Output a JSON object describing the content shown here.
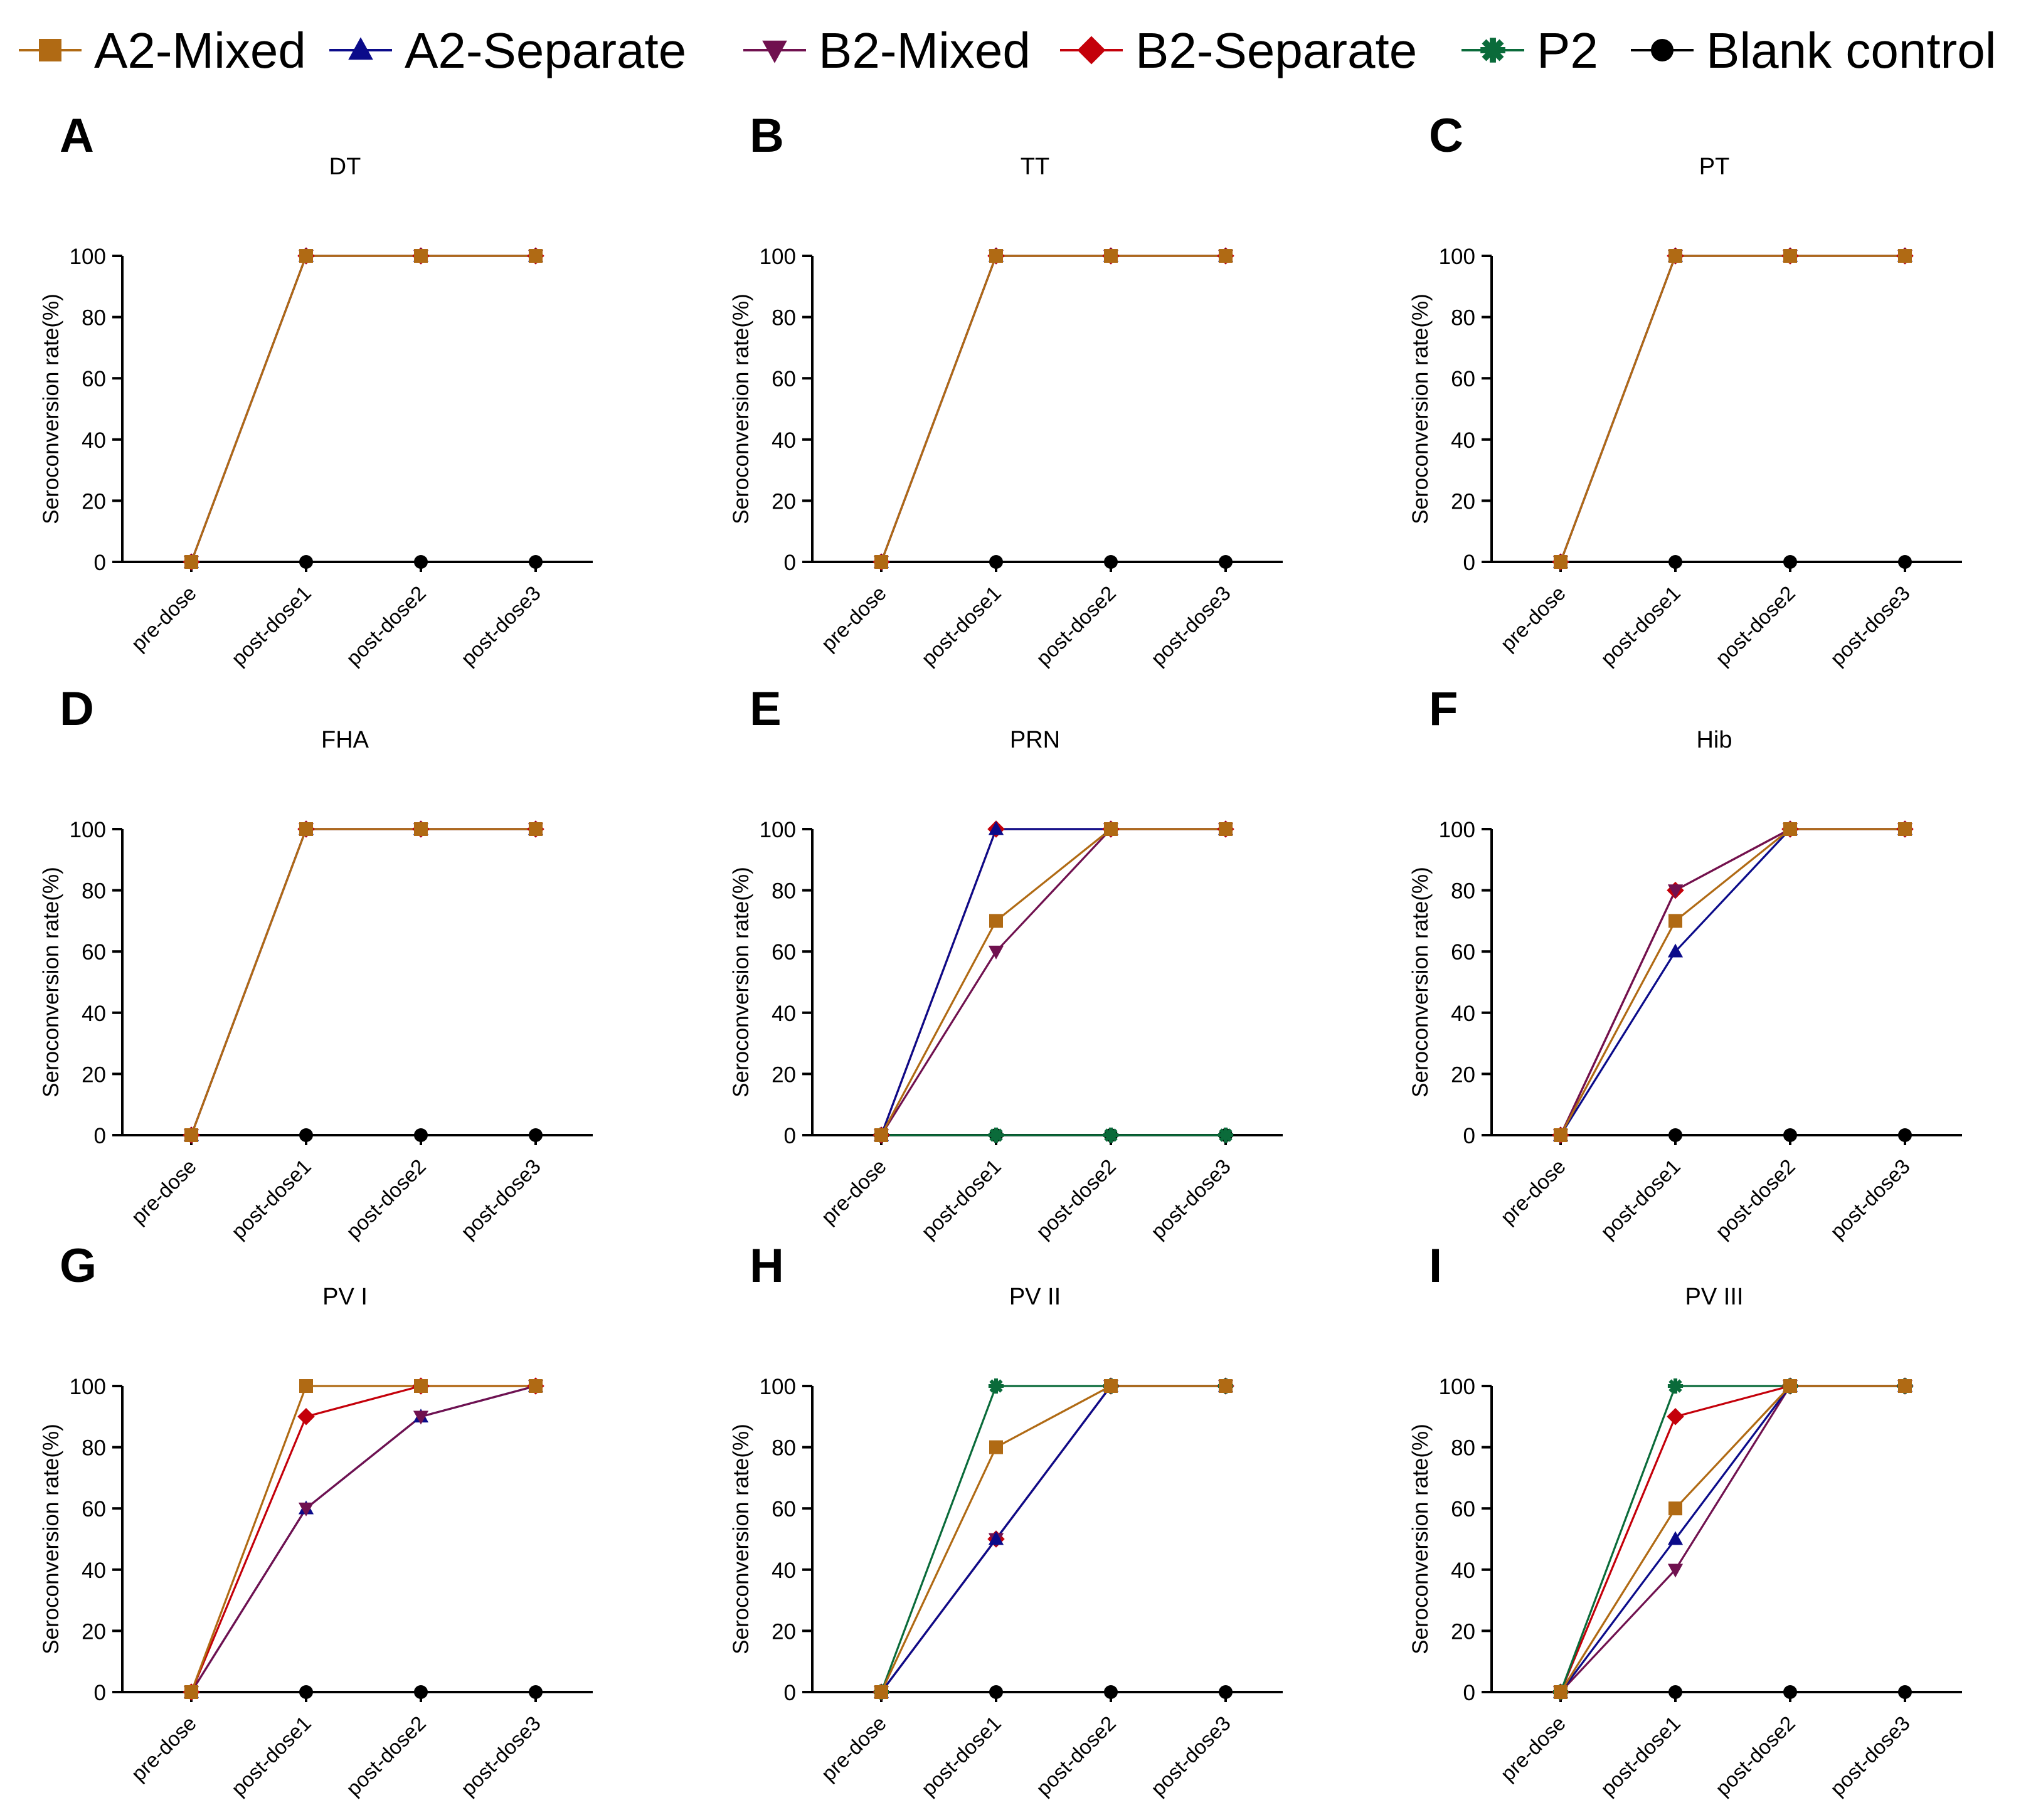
{
  "legend": {
    "entries": [
      {
        "name": "A2-Mixed",
        "color": "#B06A14",
        "marker": "square"
      },
      {
        "name": "A2-Separate",
        "color": "#0B0B8A",
        "marker": "triangle-up"
      },
      {
        "name": "B2-Mixed",
        "color": "#70114F",
        "marker": "triangle-down"
      },
      {
        "name": "B2-Separate",
        "color": "#C4000A",
        "marker": "diamond"
      },
      {
        "name": "P2",
        "color": "#0A6B3A",
        "marker": "asterisk"
      },
      {
        "name": "Blank control",
        "color": "#000000",
        "marker": "circle"
      }
    ]
  },
  "chart_data": [
    {
      "panel": "A",
      "title": "DT",
      "type": "line",
      "categories": [
        "pre-dose",
        "post-dose1",
        "post-dose2",
        "post-dose3"
      ],
      "ylabel": "Seroconversion rate(%)",
      "ylim": [
        0,
        100
      ],
      "yticks": [
        0,
        20,
        40,
        60,
        80,
        100
      ],
      "series": [
        {
          "name": "B2-Separate",
          "values": [
            0,
            100,
            100,
            100
          ]
        },
        {
          "name": "B2-Mixed",
          "values": [
            0,
            100,
            100,
            100
          ]
        },
        {
          "name": "A2-Separate",
          "values": [
            0,
            100,
            100,
            100
          ]
        },
        {
          "name": "A2-Mixed",
          "values": [
            0,
            100,
            100,
            100
          ]
        },
        {
          "name": "Blank control",
          "values": [
            null,
            0,
            0,
            0
          ]
        }
      ]
    },
    {
      "panel": "B",
      "title": "TT",
      "type": "line",
      "categories": [
        "pre-dose",
        "post-dose1",
        "post-dose2",
        "post-dose3"
      ],
      "ylabel": "Seroconversion rate(%)",
      "ylim": [
        0,
        100
      ],
      "yticks": [
        0,
        20,
        40,
        60,
        80,
        100
      ],
      "series": [
        {
          "name": "B2-Separate",
          "values": [
            0,
            100,
            100,
            100
          ]
        },
        {
          "name": "B2-Mixed",
          "values": [
            0,
            100,
            100,
            100
          ]
        },
        {
          "name": "A2-Separate",
          "values": [
            0,
            100,
            100,
            100
          ]
        },
        {
          "name": "A2-Mixed",
          "values": [
            0,
            100,
            100,
            100
          ]
        },
        {
          "name": "Blank control",
          "values": [
            null,
            0,
            0,
            0
          ]
        }
      ]
    },
    {
      "panel": "C",
      "title": "PT",
      "type": "line",
      "categories": [
        "pre-dose",
        "post-dose1",
        "post-dose2",
        "post-dose3"
      ],
      "ylabel": "Seroconversion rate(%)",
      "ylim": [
        0,
        100
      ],
      "yticks": [
        0,
        20,
        40,
        60,
        80,
        100
      ],
      "series": [
        {
          "name": "B2-Separate",
          "values": [
            0,
            100,
            100,
            100
          ]
        },
        {
          "name": "B2-Mixed",
          "values": [
            0,
            100,
            100,
            100
          ]
        },
        {
          "name": "A2-Separate",
          "values": [
            0,
            100,
            100,
            100
          ]
        },
        {
          "name": "A2-Mixed",
          "values": [
            0,
            100,
            100,
            100
          ]
        },
        {
          "name": "Blank control",
          "values": [
            null,
            0,
            0,
            0
          ]
        }
      ]
    },
    {
      "panel": "D",
      "title": "FHA",
      "type": "line",
      "categories": [
        "pre-dose",
        "post-dose1",
        "post-dose2",
        "post-dose3"
      ],
      "ylabel": "Seroconversion rate(%)",
      "ylim": [
        0,
        100
      ],
      "yticks": [
        0,
        20,
        40,
        60,
        80,
        100
      ],
      "series": [
        {
          "name": "B2-Separate",
          "values": [
            0,
            100,
            100,
            100
          ]
        },
        {
          "name": "B2-Mixed",
          "values": [
            0,
            100,
            100,
            100
          ]
        },
        {
          "name": "A2-Separate",
          "values": [
            0,
            100,
            100,
            100
          ]
        },
        {
          "name": "A2-Mixed",
          "values": [
            0,
            100,
            100,
            100
          ]
        },
        {
          "name": "Blank control",
          "values": [
            null,
            0,
            0,
            0
          ]
        }
      ]
    },
    {
      "panel": "E",
      "title": "PRN",
      "type": "line",
      "categories": [
        "pre-dose",
        "post-dose1",
        "post-dose2",
        "post-dose3"
      ],
      "ylabel": "Seroconversion rate(%)",
      "ylim": [
        0,
        100
      ],
      "yticks": [
        0,
        20,
        40,
        60,
        80,
        100
      ],
      "series": [
        {
          "name": "Blank control",
          "values": [
            0,
            0,
            0,
            0
          ]
        },
        {
          "name": "P2",
          "values": [
            0,
            0,
            0,
            0
          ]
        },
        {
          "name": "B2-Separate",
          "values": [
            0,
            100,
            100,
            100
          ]
        },
        {
          "name": "B2-Mixed",
          "values": [
            0,
            60,
            100,
            100
          ]
        },
        {
          "name": "A2-Separate",
          "values": [
            0,
            100,
            100,
            100
          ]
        },
        {
          "name": "A2-Mixed",
          "values": [
            0,
            70,
            100,
            100
          ]
        }
      ]
    },
    {
      "panel": "F",
      "title": "Hib",
      "type": "line",
      "categories": [
        "pre-dose",
        "post-dose1",
        "post-dose2",
        "post-dose3"
      ],
      "ylabel": "Seroconversion rate(%)",
      "ylim": [
        0,
        100
      ],
      "yticks": [
        0,
        20,
        40,
        60,
        80,
        100
      ],
      "series": [
        {
          "name": "Blank control",
          "values": [
            0,
            0,
            0,
            0
          ]
        },
        {
          "name": "B2-Separate",
          "values": [
            0,
            80,
            100,
            100
          ]
        },
        {
          "name": "B2-Mixed",
          "values": [
            0,
            80,
            100,
            100
          ]
        },
        {
          "name": "A2-Separate",
          "values": [
            0,
            60,
            100,
            100
          ]
        },
        {
          "name": "A2-Mixed",
          "values": [
            0,
            70,
            100,
            100
          ]
        }
      ]
    },
    {
      "panel": "G",
      "title": "PV I",
      "type": "line",
      "categories": [
        "pre-dose",
        "post-dose1",
        "post-dose2",
        "post-dose3"
      ],
      "ylabel": "Seroconversion rate(%)",
      "ylim": [
        0,
        100
      ],
      "yticks": [
        0,
        20,
        40,
        60,
        80,
        100
      ],
      "series": [
        {
          "name": "Blank control",
          "values": [
            0,
            0,
            0,
            0
          ]
        },
        {
          "name": "A2-Separate",
          "values": [
            0,
            60,
            90,
            100
          ]
        },
        {
          "name": "B2-Mixed",
          "values": [
            0,
            60,
            90,
            100
          ]
        },
        {
          "name": "B2-Separate",
          "values": [
            0,
            90,
            100,
            100
          ]
        },
        {
          "name": "A2-Mixed",
          "values": [
            0,
            100,
            100,
            100
          ]
        }
      ]
    },
    {
      "panel": "H",
      "title": "PV II",
      "type": "line",
      "categories": [
        "pre-dose",
        "post-dose1",
        "post-dose2",
        "post-dose3"
      ],
      "ylabel": "Seroconversion rate(%)",
      "ylim": [
        0,
        100
      ],
      "yticks": [
        0,
        20,
        40,
        60,
        80,
        100
      ],
      "series": [
        {
          "name": "Blank control",
          "values": [
            0,
            0,
            0,
            0
          ]
        },
        {
          "name": "B2-Separate",
          "values": [
            0,
            50,
            100,
            100
          ]
        },
        {
          "name": "B2-Mixed",
          "values": [
            0,
            50,
            100,
            100
          ]
        },
        {
          "name": "A2-Separate",
          "values": [
            0,
            50,
            100,
            100
          ]
        },
        {
          "name": "P2",
          "values": [
            0,
            100,
            100,
            100
          ]
        },
        {
          "name": "A2-Mixed",
          "values": [
            0,
            80,
            100,
            100
          ]
        }
      ]
    },
    {
      "panel": "I",
      "title": "PV III",
      "type": "line",
      "categories": [
        "pre-dose",
        "post-dose1",
        "post-dose2",
        "post-dose3"
      ],
      "ylabel": "Seroconversion rate(%)",
      "ylim": [
        0,
        100
      ],
      "yticks": [
        0,
        20,
        40,
        60,
        80,
        100
      ],
      "series": [
        {
          "name": "Blank control",
          "values": [
            0,
            0,
            0,
            0
          ]
        },
        {
          "name": "B2-Mixed",
          "values": [
            0,
            40,
            100,
            100
          ]
        },
        {
          "name": "A2-Separate",
          "values": [
            0,
            50,
            100,
            100
          ]
        },
        {
          "name": "B2-Separate",
          "values": [
            0,
            90,
            100,
            100
          ]
        },
        {
          "name": "P2",
          "values": [
            0,
            100,
            100,
            100
          ]
        },
        {
          "name": "A2-Mixed",
          "values": [
            0,
            60,
            100,
            100
          ]
        }
      ]
    }
  ]
}
